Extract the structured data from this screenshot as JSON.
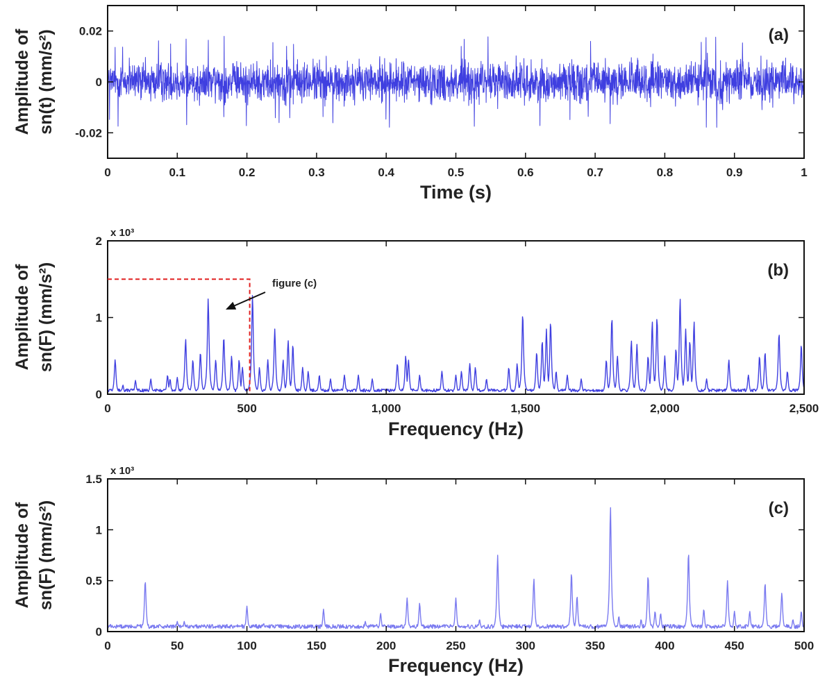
{
  "chart_data": [
    {
      "id": "a",
      "type": "line",
      "panel_label": "(a)",
      "xlabel": "Time (s)",
      "ylabel": [
        "Amplitude of",
        "sn(t) (mm/s²)"
      ],
      "xlim": [
        0,
        1
      ],
      "ylim": [
        -0.03,
        0.03
      ],
      "x_ticks": [
        0,
        0.1,
        0.2,
        0.3,
        0.4,
        0.5,
        0.6,
        0.7,
        0.8,
        0.9,
        1
      ],
      "x_tick_labels": [
        "0",
        "0.1",
        "0.2",
        "0.3",
        "0.4",
        "0.5",
        "0.6",
        "0.7",
        "0.8",
        "0.9",
        "1"
      ],
      "y_ticks": [
        -0.02,
        0,
        0.02
      ],
      "y_tick_labels": [
        "-0.02",
        "0",
        "0.02"
      ],
      "exponent_label": "",
      "color": "#3f3fe0",
      "signal": {
        "kind": "noise",
        "x_start": 0,
        "x_end": 1,
        "samples": 2600,
        "typical_amplitude": 0.006,
        "max_amplitude": 0.018
      }
    },
    {
      "id": "b",
      "type": "line",
      "panel_label": "(b)",
      "xlabel": "Frequency (Hz)",
      "ylabel": [
        "Amplitude of",
        "sn(F) (mm/s²)"
      ],
      "xlim": [
        0,
        2500
      ],
      "ylim": [
        0,
        2
      ],
      "x_ticks": [
        0,
        500,
        1000,
        1500,
        2000,
        2500
      ],
      "x_tick_labels": [
        "0",
        "500",
        "1,000",
        "1,500",
        "2,000",
        "2,500"
      ],
      "y_ticks": [
        0,
        1,
        2
      ],
      "y_tick_labels": [
        "0",
        "1",
        "2"
      ],
      "exponent_label": "x 10³",
      "color": "#3f3fe0",
      "baseline": 0.05,
      "peaks": [
        [
          27,
          0.45
        ],
        [
          55,
          0.12
        ],
        [
          100,
          0.18
        ],
        [
          155,
          0.2
        ],
        [
          215,
          0.25
        ],
        [
          224,
          0.2
        ],
        [
          250,
          0.22
        ],
        [
          280,
          0.72
        ],
        [
          306,
          0.45
        ],
        [
          333,
          0.55
        ],
        [
          361,
          1.25
        ],
        [
          388,
          0.45
        ],
        [
          417,
          0.75
        ],
        [
          445,
          0.5
        ],
        [
          472,
          0.45
        ],
        [
          484,
          0.35
        ],
        [
          520,
          1.3
        ],
        [
          545,
          0.35
        ],
        [
          575,
          0.45
        ],
        [
          600,
          0.85
        ],
        [
          630,
          0.45
        ],
        [
          648,
          0.7
        ],
        [
          665,
          0.65
        ],
        [
          700,
          0.35
        ],
        [
          720,
          0.3
        ],
        [
          760,
          0.25
        ],
        [
          800,
          0.2
        ],
        [
          850,
          0.25
        ],
        [
          900,
          0.25
        ],
        [
          950,
          0.2
        ],
        [
          1040,
          0.4
        ],
        [
          1070,
          0.5
        ],
        [
          1080,
          0.45
        ],
        [
          1120,
          0.25
        ],
        [
          1200,
          0.3
        ],
        [
          1250,
          0.25
        ],
        [
          1270,
          0.3
        ],
        [
          1300,
          0.4
        ],
        [
          1320,
          0.35
        ],
        [
          1360,
          0.2
        ],
        [
          1440,
          0.35
        ],
        [
          1470,
          0.4
        ],
        [
          1490,
          1.05
        ],
        [
          1540,
          0.55
        ],
        [
          1560,
          0.7
        ],
        [
          1575,
          0.85
        ],
        [
          1590,
          0.95
        ],
        [
          1610,
          0.3
        ],
        [
          1650,
          0.25
        ],
        [
          1700,
          0.2
        ],
        [
          1790,
          0.45
        ],
        [
          1810,
          1.0
        ],
        [
          1830,
          0.5
        ],
        [
          1880,
          0.7
        ],
        [
          1900,
          0.65
        ],
        [
          1940,
          0.5
        ],
        [
          1955,
          0.95
        ],
        [
          1972,
          1.0
        ],
        [
          2000,
          0.5
        ],
        [
          2040,
          0.6
        ],
        [
          2055,
          1.25
        ],
        [
          2075,
          0.85
        ],
        [
          2090,
          0.7
        ],
        [
          2105,
          0.95
        ],
        [
          2150,
          0.2
        ],
        [
          2230,
          0.45
        ],
        [
          2300,
          0.25
        ],
        [
          2340,
          0.5
        ],
        [
          2360,
          0.55
        ],
        [
          2410,
          0.8
        ],
        [
          2440,
          0.3
        ],
        [
          2490,
          0.65
        ]
      ]
    },
    {
      "id": "c",
      "type": "line",
      "panel_label": "(c)",
      "xlabel": "Frequency (Hz)",
      "ylabel": [
        "Amplitude of",
        "sn(F) (mm/s²)"
      ],
      "xlim": [
        0,
        500
      ],
      "ylim": [
        0,
        1.5
      ],
      "x_ticks": [
        0,
        50,
        100,
        150,
        200,
        250,
        300,
        350,
        400,
        450,
        500
      ],
      "x_tick_labels": [
        "0",
        "50",
        "100",
        "150",
        "200",
        "250",
        "300",
        "350",
        "400",
        "450",
        "500"
      ],
      "y_ticks": [
        0,
        0.5,
        1,
        1.5
      ],
      "y_tick_labels": [
        "0",
        "0.5",
        "1",
        "1.5"
      ],
      "exponent_label": "x 10³",
      "color": "#7a7af0",
      "baseline": 0.05,
      "peaks": [
        [
          27,
          0.5
        ],
        [
          50,
          0.1
        ],
        [
          55,
          0.1
        ],
        [
          100,
          0.25
        ],
        [
          112,
          0.08
        ],
        [
          118,
          0.07
        ],
        [
          155,
          0.22
        ],
        [
          185,
          0.1
        ],
        [
          196,
          0.18
        ],
        [
          215,
          0.33
        ],
        [
          224,
          0.28
        ],
        [
          250,
          0.33
        ],
        [
          267,
          0.12
        ],
        [
          280,
          0.75
        ],
        [
          306,
          0.52
        ],
        [
          333,
          0.58
        ],
        [
          337,
          0.35
        ],
        [
          361,
          1.23
        ],
        [
          367,
          0.15
        ],
        [
          383,
          0.12
        ],
        [
          388,
          0.55
        ],
        [
          393,
          0.2
        ],
        [
          397,
          0.18
        ],
        [
          417,
          0.78
        ],
        [
          428,
          0.22
        ],
        [
          445,
          0.5
        ],
        [
          450,
          0.2
        ],
        [
          461,
          0.2
        ],
        [
          472,
          0.48
        ],
        [
          484,
          0.38
        ],
        [
          492,
          0.12
        ],
        [
          498,
          0.2
        ]
      ]
    }
  ],
  "annotations": {
    "zoom_region": {
      "x_range": [
        0,
        510
      ],
      "y_max": 1.5,
      "color": "#e02020"
    },
    "arrow_text": "figure (c)"
  }
}
